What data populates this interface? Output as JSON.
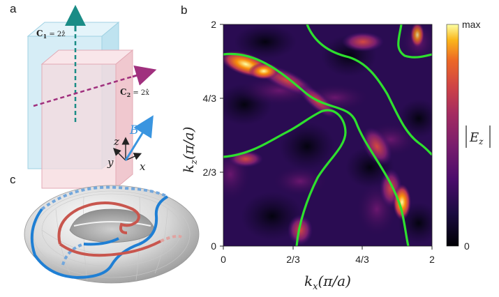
{
  "panels": {
    "a": {
      "letter": "a",
      "c1_label": "C",
      "c1_sub": "1",
      "c1_value": " = 2ẑ",
      "c2_label": "C",
      "c2_sub": "2",
      "c2_value": " = 2x̂",
      "b_label": "B",
      "axis_z": "z",
      "axis_y": "y",
      "axis_x": "x",
      "colors": {
        "c1_arrow": "#1a8c86",
        "c2_arrow": "#a0307e",
        "b_arrow": "#3a95e0",
        "plate_blue": "#cfeaf4",
        "plate_pink": "#f6d9de"
      }
    },
    "b": {
      "letter": "b",
      "xlabel_main": "k",
      "xlabel_sub": "x",
      "xlabel_unit": "(π/a)",
      "ylabel_main": "k",
      "ylabel_sub": "z",
      "ylabel_unit": "(π/a)",
      "x_ticks": [
        "0",
        "2/3",
        "4/3",
        "2"
      ],
      "y_ticks": [
        "0",
        "2/3",
        "4/3",
        "2"
      ],
      "colorbar_max": "max",
      "colorbar_min": "0",
      "colorbar_label_main": "E",
      "colorbar_label_sub": "z",
      "colors": {
        "contour": "#2ee02e",
        "bg": "#1b0a36"
      }
    },
    "c": {
      "letter": "c",
      "colors": {
        "blue_loop": "#1f7fd4",
        "red_loop": "#c8564e",
        "torus": "#d9d9d9"
      }
    }
  }
}
